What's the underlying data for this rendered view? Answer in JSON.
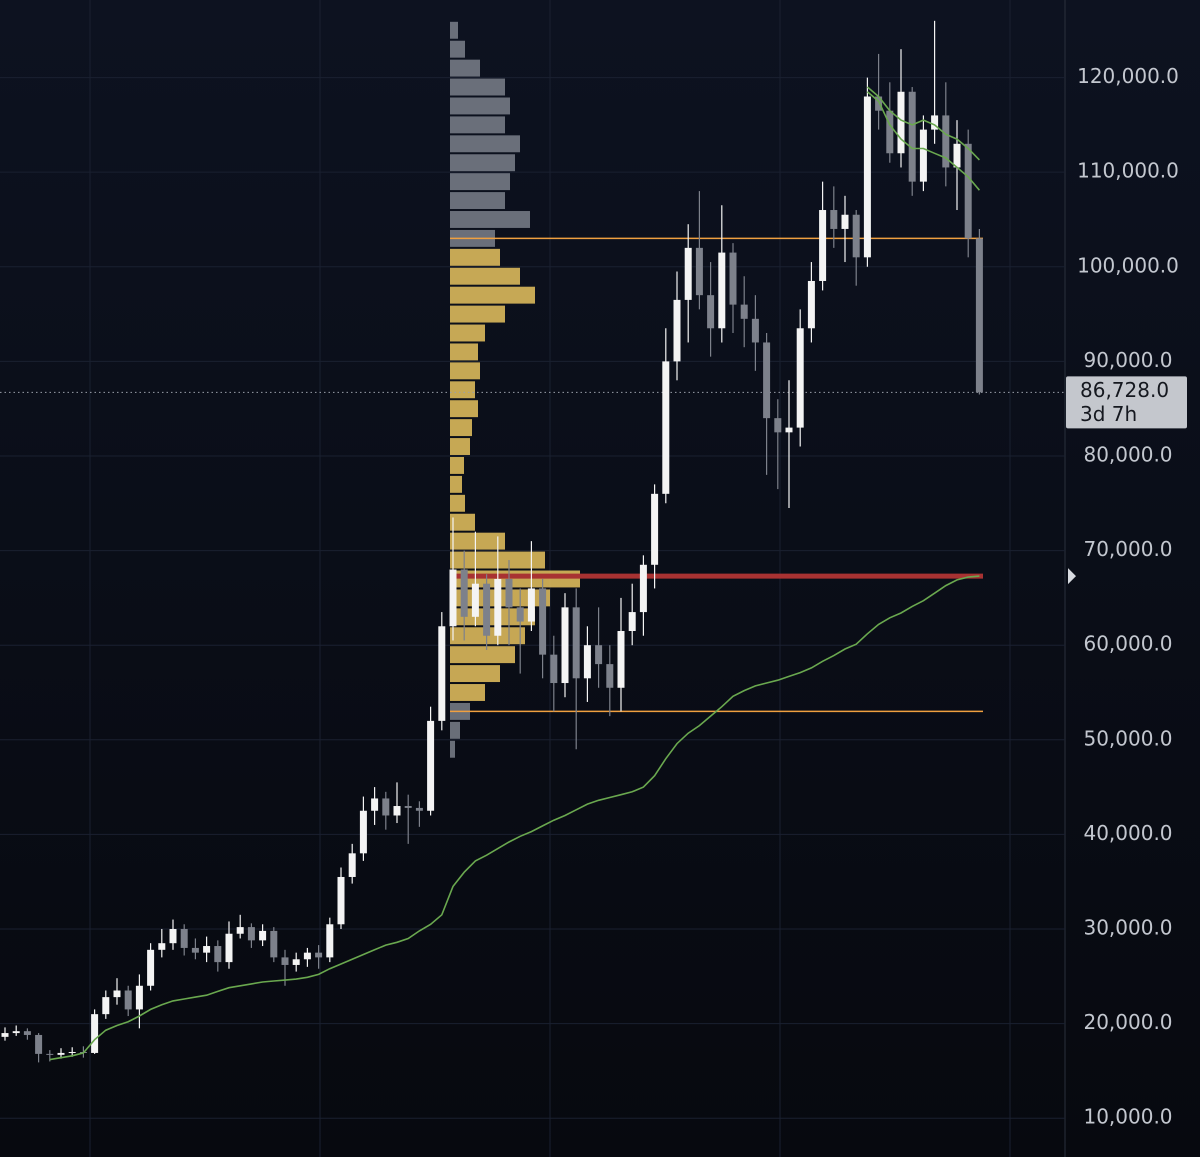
{
  "chart_data": {
    "type": "candlestick",
    "ylim": [
      5900,
      128200
    ],
    "yticks": [
      {
        "value": 10000,
        "label": "10,000.0"
      },
      {
        "value": 20000,
        "label": "20,000.0"
      },
      {
        "value": 30000,
        "label": "30,000.0"
      },
      {
        "value": 40000,
        "label": "40,000.0"
      },
      {
        "value": 50000,
        "label": "50,000.0"
      },
      {
        "value": 60000,
        "label": "60,000.0"
      },
      {
        "value": 70000,
        "label": "70,000.0"
      },
      {
        "value": 80000,
        "label": "80,000.0"
      },
      {
        "value": 90000,
        "label": "90,000.0"
      },
      {
        "value": 100000,
        "label": "100,000.0"
      },
      {
        "value": 110000,
        "label": "110,000.0"
      },
      {
        "value": 120000,
        "label": "120,000.0"
      }
    ],
    "grid": true,
    "candles": {
      "up_color": "#f4f4f4",
      "down_color": "#7d818b",
      "open": [
        18600,
        19000,
        19200,
        18800,
        16800,
        16700,
        16900,
        17000,
        16900,
        21000,
        22800,
        23500,
        21500,
        24000,
        27800,
        28500,
        30000,
        28000,
        27500,
        28200,
        26500,
        29500,
        30200,
        28800,
        29800,
        27000,
        26200,
        26800,
        27500,
        27000,
        30500,
        35500,
        38000,
        42500,
        43800,
        42000,
        43000,
        42800,
        42500,
        52000,
        62000,
        68000,
        63000,
        66500,
        61000,
        67000,
        64000,
        62500,
        66000,
        59000,
        56000,
        64000,
        56500,
        60000,
        58000,
        55500,
        61500,
        63500,
        68500,
        76000,
        90000,
        96500,
        102000,
        97000,
        93500,
        101500,
        96000,
        94500,
        92000,
        84000,
        82500,
        83000,
        93500,
        98500,
        106000,
        104000,
        105500,
        101000,
        118000,
        116500,
        112000,
        118500,
        109000,
        114500,
        116000,
        110500,
        113000,
        103000
      ],
      "high": [
        19600,
        19800,
        19500,
        19000,
        17200,
        17400,
        17500,
        17600,
        21500,
        23500,
        24800,
        24000,
        25200,
        28500,
        30000,
        31000,
        30500,
        29000,
        29200,
        28800,
        30800,
        31500,
        30600,
        30500,
        30200,
        27800,
        27500,
        28000,
        28300,
        31200,
        36500,
        39000,
        44000,
        45000,
        44500,
        45500,
        44200,
        43500,
        53500,
        63500,
        73500,
        70000,
        72000,
        67500,
        71500,
        69000,
        66000,
        71000,
        67000,
        61000,
        65500,
        66000,
        62000,
        64000,
        60000,
        65000,
        66500,
        69500,
        77000,
        93500,
        99500,
        104500,
        108000,
        100500,
        106500,
        102500,
        99000,
        97000,
        93000,
        86000,
        88000,
        95500,
        100500,
        109000,
        108500,
        107500,
        106000,
        120000,
        122500,
        119500,
        123000,
        119000,
        116000,
        126000,
        119500,
        115500,
        114500,
        104000
      ],
      "low": [
        18200,
        18700,
        18300,
        15900,
        16000,
        16300,
        16500,
        16400,
        16800,
        20500,
        22000,
        20800,
        19500,
        23500,
        27000,
        27800,
        27200,
        26800,
        26500,
        25500,
        25800,
        29000,
        28000,
        28200,
        26500,
        24000,
        25500,
        26000,
        25800,
        26500,
        30000,
        34800,
        37200,
        41000,
        40500,
        41200,
        39000,
        40800,
        42000,
        51000,
        60500,
        60500,
        62000,
        59500,
        60000,
        60000,
        57000,
        61500,
        56500,
        53000,
        54500,
        49000,
        54000,
        55500,
        52500,
        53000,
        60000,
        61000,
        66000,
        75000,
        88000,
        92000,
        95500,
        90500,
        92000,
        93000,
        91500,
        89000,
        78000,
        76500,
        74500,
        81000,
        92000,
        97500,
        102000,
        100500,
        98000,
        100000,
        114500,
        111000,
        110500,
        107500,
        108000,
        113000,
        108500,
        106000,
        101000,
        86500
      ],
      "close": [
        19000,
        19200,
        18800,
        16800,
        16700,
        16900,
        17000,
        16900,
        21000,
        22800,
        23500,
        21500,
        24000,
        27800,
        28500,
        30000,
        28000,
        27500,
        28200,
        26500,
        29500,
        30200,
        28800,
        29800,
        27000,
        26200,
        26800,
        27500,
        27000,
        30500,
        35500,
        38000,
        42500,
        43800,
        42000,
        43000,
        42800,
        42500,
        52000,
        62000,
        68000,
        63000,
        66500,
        61000,
        67000,
        64000,
        62500,
        66000,
        59000,
        56000,
        64000,
        56500,
        60000,
        58000,
        55500,
        61500,
        63500,
        68500,
        76000,
        90000,
        96500,
        102000,
        97000,
        93500,
        101500,
        96000,
        94500,
        92000,
        84000,
        82500,
        83000,
        93500,
        98500,
        106000,
        104000,
        105500,
        101000,
        118000,
        116500,
        112000,
        118500,
        109000,
        114500,
        116000,
        110500,
        113000,
        103000,
        86728
      ]
    },
    "ma": [
      {
        "color": "#6aa84f",
        "values": [
          null,
          null,
          null,
          null,
          16200,
          16400,
          16600,
          16900,
          18300,
          19300,
          19800,
          20200,
          20800,
          21500,
          22000,
          22400,
          22600,
          22800,
          23000,
          23400,
          23800,
          24000,
          24200,
          24400,
          24500,
          24600,
          24700,
          24900,
          25200,
          25800,
          26300,
          26800,
          27300,
          27800,
          28300,
          28600,
          29000,
          29800,
          30500,
          31500,
          34500,
          36000,
          37200,
          37800,
          38500,
          39200,
          39800,
          40300,
          40900,
          41500,
          42000,
          42600,
          43200,
          43600,
          43900,
          44200,
          44500,
          45000,
          46200,
          48000,
          49600,
          50700,
          51500,
          52500,
          53500,
          54600,
          55200,
          55700,
          56000,
          56300,
          56700,
          57100,
          57600,
          58300,
          58900,
          59600,
          60100,
          61200,
          62200,
          62900,
          63400,
          64100,
          64700,
          65500,
          66300,
          66900,
          67200,
          67300
        ]
      },
      {
        "color": "#6aa84f",
        "values": [
          null,
          null,
          null,
          null,
          null,
          null,
          null,
          null,
          null,
          null,
          null,
          null,
          null,
          null,
          null,
          null,
          null,
          null,
          null,
          null,
          null,
          null,
          null,
          null,
          null,
          null,
          null,
          null,
          null,
          null,
          null,
          null,
          null,
          null,
          null,
          null,
          null,
          null,
          null,
          null,
          null,
          null,
          null,
          null,
          null,
          null,
          null,
          null,
          null,
          null,
          null,
          null,
          null,
          null,
          null,
          null,
          null,
          null,
          null,
          null,
          null,
          null,
          null,
          null,
          null,
          null,
          null,
          null,
          null,
          null,
          null,
          null,
          null,
          null,
          null,
          null,
          null,
          119000,
          118000,
          116500,
          115500,
          115000,
          115500,
          115000,
          114000,
          113500,
          112500,
          111300
        ]
      },
      {
        "color": "#6aa84f",
        "values": [
          null,
          null,
          null,
          null,
          null,
          null,
          null,
          null,
          null,
          null,
          null,
          null,
          null,
          null,
          null,
          null,
          null,
          null,
          null,
          null,
          null,
          null,
          null,
          null,
          null,
          null,
          null,
          null,
          null,
          null,
          null,
          null,
          null,
          null,
          null,
          null,
          null,
          null,
          null,
          null,
          null,
          null,
          null,
          null,
          null,
          null,
          null,
          null,
          null,
          null,
          null,
          null,
          null,
          null,
          null,
          null,
          null,
          null,
          null,
          null,
          null,
          null,
          null,
          null,
          null,
          null,
          null,
          null,
          null,
          null,
          null,
          null,
          null,
          null,
          null,
          null,
          null,
          118500,
          117500,
          115000,
          113500,
          112500,
          112500,
          112000,
          111500,
          110500,
          109500,
          108100
        ]
      }
    ],
    "profile": {
      "inside_color": "#e7c35f",
      "outside_color": "#8a8f99",
      "bins": [
        48000,
        50000,
        52000,
        54000,
        56000,
        58000,
        60000,
        62000,
        64000,
        66000,
        68000,
        70000,
        72000,
        74000,
        76000,
        78000,
        80000,
        82000,
        84000,
        86000,
        88000,
        90000,
        92000,
        94000,
        96000,
        98000,
        100000,
        102000,
        104000,
        106000,
        108000,
        110000,
        112000,
        114000,
        116000,
        118000,
        120000,
        122000,
        124000,
        126000
      ],
      "counts": [
        5,
        10,
        20,
        35,
        50,
        65,
        75,
        85,
        100,
        130,
        95,
        55,
        25,
        15,
        12,
        14,
        20,
        22,
        28,
        25,
        30,
        28,
        35,
        55,
        85,
        70,
        50,
        45,
        80,
        55,
        60,
        65,
        70,
        55,
        60,
        55,
        30,
        15,
        8
      ]
    },
    "levels": [
      {
        "value": 103000,
        "color": "#f0a040"
      },
      {
        "value": 67300,
        "color": "#a83232"
      },
      {
        "value": 53000,
        "color": "#f0a040"
      }
    ],
    "last_price": {
      "value": 86728,
      "label": "86,728.0",
      "countdown": "3d 7h"
    }
  }
}
